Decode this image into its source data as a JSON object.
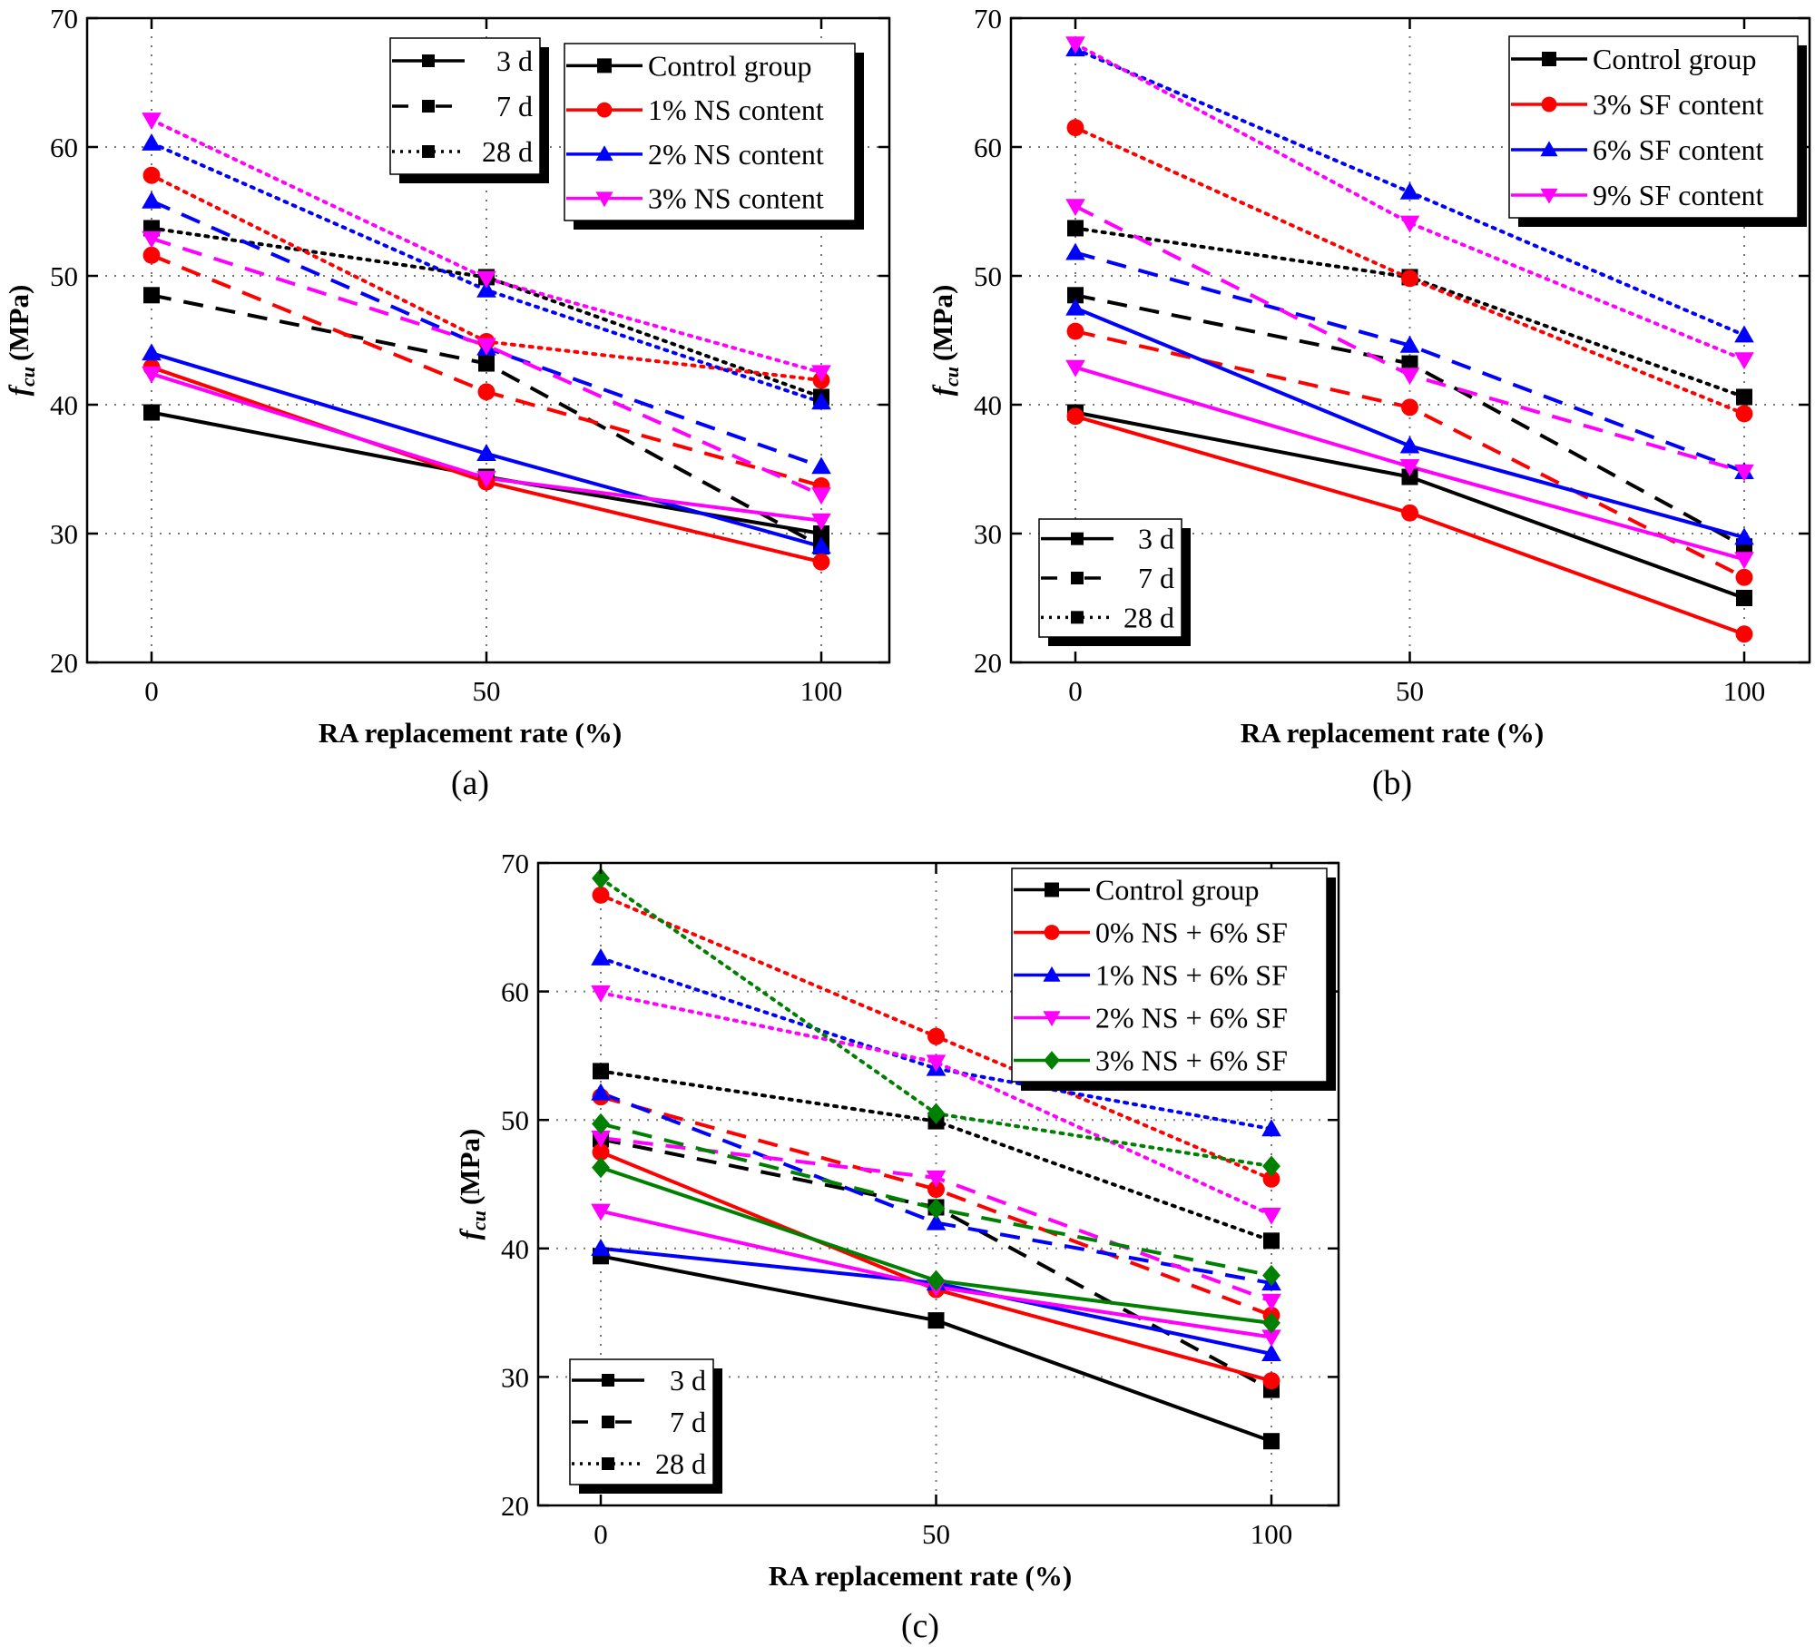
{
  "figure": {
    "panels": [
      "(a)",
      "(b)",
      "(c)"
    ]
  },
  "chart_data": [
    {
      "type": "line",
      "panel_label": "(a)",
      "title": "",
      "xlabel": "RA replacement rate (%)",
      "ylabel_main": "f",
      "ylabel_sub": "cu",
      "ylabel_unit": "(MPa)",
      "x": [
        0,
        50,
        100
      ],
      "x_ticks": [
        "0",
        "50",
        "100"
      ],
      "y_ticks": [
        "20",
        "30",
        "40",
        "50",
        "60",
        "70"
      ],
      "xlim": [
        -10,
        110
      ],
      "ylim": [
        20,
        70
      ],
      "grid": true,
      "age_legend": {
        "placement": "top-center",
        "entries": [
          "3 d",
          "7 d",
          "28 d"
        ]
      },
      "group_legend": {
        "placement": "top-right",
        "entries": [
          "Control group",
          "1% NS content",
          "2% NS content",
          "3% NS content"
        ]
      },
      "groups": [
        {
          "name": "Control group",
          "color": "#000000",
          "marker": "square",
          "ages": {
            "3 d": [
              39.4,
              34.4,
              30.0
            ],
            "7 d": [
              48.5,
              43.2,
              29.0
            ],
            "28 d": [
              53.7,
              49.9,
              40.6
            ]
          }
        },
        {
          "name": "1% NS content",
          "color": "#ff0000",
          "marker": "circle",
          "ages": {
            "3 d": [
              42.9,
              34.0,
              27.8
            ],
            "7 d": [
              51.6,
              41.0,
              33.7
            ],
            "28 d": [
              57.8,
              44.9,
              41.9
            ]
          }
        },
        {
          "name": "2% NS content",
          "color": "#0000ff",
          "marker": "triangle-up",
          "ages": {
            "3 d": [
              44.0,
              36.2,
              29.0
            ],
            "7 d": [
              55.8,
              44.4,
              35.2
            ],
            "28 d": [
              60.3,
              48.9,
              40.2
            ]
          }
        },
        {
          "name": "3% NS content",
          "color": "#ff00ff",
          "marker": "triangle-down",
          "ages": {
            "3 d": [
              42.4,
              34.3,
              31.0
            ],
            "7 d": [
              52.9,
              44.6,
              33.0
            ],
            "28 d": [
              62.1,
              49.8,
              42.5
            ]
          }
        }
      ]
    },
    {
      "type": "line",
      "panel_label": "(b)",
      "title": "",
      "xlabel": "RA replacement rate (%)",
      "ylabel_main": "f",
      "ylabel_sub": "cu",
      "ylabel_unit": "(MPa)",
      "x": [
        0,
        50,
        100
      ],
      "x_ticks": [
        "0",
        "50",
        "100"
      ],
      "y_ticks": [
        "20",
        "30",
        "40",
        "50",
        "60",
        "70"
      ],
      "xlim": [
        -10,
        110
      ],
      "ylim": [
        20,
        70
      ],
      "grid": true,
      "age_legend": {
        "placement": "bottom-left",
        "entries": [
          "3 d",
          "7 d",
          "28 d"
        ]
      },
      "group_legend": {
        "placement": "top-right",
        "entries": [
          "Control group",
          "3% SF content",
          "6% SF content",
          "9% SF content"
        ]
      },
      "groups": [
        {
          "name": "Control group",
          "color": "#000000",
          "marker": "square",
          "ages": {
            "3 d": [
              39.4,
              34.4,
              25.0
            ],
            "7 d": [
              48.5,
              43.2,
              29.0
            ],
            "28 d": [
              53.7,
              49.9,
              40.6
            ]
          }
        },
        {
          "name": "3% SF content",
          "color": "#ff0000",
          "marker": "circle",
          "ages": {
            "3 d": [
              39.1,
              31.6,
              22.2
            ],
            "7 d": [
              45.7,
              39.8,
              26.6
            ],
            "28 d": [
              61.5,
              49.8,
              39.3
            ]
          }
        },
        {
          "name": "6% SF content",
          "color": "#0000ff",
          "marker": "triangle-up",
          "ages": {
            "3 d": [
              47.5,
              36.8,
              29.7
            ],
            "7 d": [
              51.8,
              44.6,
              34.8
            ],
            "28 d": [
              67.6,
              56.5,
              45.4
            ]
          }
        },
        {
          "name": "9% SF content",
          "color": "#ff00ff",
          "marker": "triangle-down",
          "ages": {
            "3 d": [
              42.9,
              35.2,
              28.0
            ],
            "7 d": [
              55.4,
              42.3,
              34.8
            ],
            "28 d": [
              68.0,
              54.1,
              43.5
            ]
          }
        }
      ]
    },
    {
      "type": "line",
      "panel_label": "(c)",
      "title": "",
      "xlabel": "RA replacement rate (%)",
      "ylabel_main": "f",
      "ylabel_sub": "cu",
      "ylabel_unit": "(MPa)",
      "x": [
        0,
        50,
        100
      ],
      "x_ticks": [
        "0",
        "50",
        "100"
      ],
      "y_ticks": [
        "20",
        "30",
        "40",
        "50",
        "60",
        "70"
      ],
      "xlim": [
        -10,
        110
      ],
      "ylim": [
        20,
        70
      ],
      "grid": true,
      "age_legend": {
        "placement": "bottom-left",
        "entries": [
          "3 d",
          "7 d",
          "28 d"
        ]
      },
      "group_legend": {
        "placement": "top-right",
        "entries": [
          "Control group",
          "0% NS + 6% SF",
          "1% NS + 6% SF",
          "2% NS + 6% SF",
          "3% NS + 6% SF"
        ]
      },
      "groups": [
        {
          "name": "Control group",
          "color": "#000000",
          "marker": "square",
          "ages": {
            "3 d": [
              39.4,
              34.4,
              25.0
            ],
            "7 d": [
              48.5,
              43.2,
              29.0
            ],
            "28 d": [
              53.8,
              49.9,
              40.6
            ]
          }
        },
        {
          "name": "0% NS + 6% SF",
          "color": "#ff0000",
          "marker": "circle",
          "ages": {
            "3 d": [
              47.5,
              36.8,
              29.7
            ],
            "7 d": [
              51.8,
              44.6,
              34.8
            ],
            "28 d": [
              67.5,
              56.5,
              45.4
            ]
          }
        },
        {
          "name": "1% NS + 6% SF",
          "color": "#0000ff",
          "marker": "triangle-up",
          "ages": {
            "3 d": [
              40.0,
              37.3,
              31.8
            ],
            "7 d": [
              52.1,
              42.0,
              37.3
            ],
            "28 d": [
              62.6,
              54.0,
              49.3
            ]
          }
        },
        {
          "name": "2% NS + 6% SF",
          "color": "#ff00ff",
          "marker": "triangle-down",
          "ages": {
            "3 d": [
              42.9,
              37.0,
              33.1
            ],
            "7 d": [
              48.6,
              45.5,
              35.9
            ],
            "28 d": [
              59.9,
              54.5,
              42.6
            ]
          }
        },
        {
          "name": "3% NS + 6% SF",
          "color": "#008000",
          "marker": "diamond",
          "ages": {
            "3 d": [
              46.3,
              37.5,
              34.2
            ],
            "7 d": [
              49.7,
              43.1,
              37.9
            ],
            "28 d": [
              68.8,
              50.5,
              46.4
            ]
          }
        }
      ]
    }
  ]
}
